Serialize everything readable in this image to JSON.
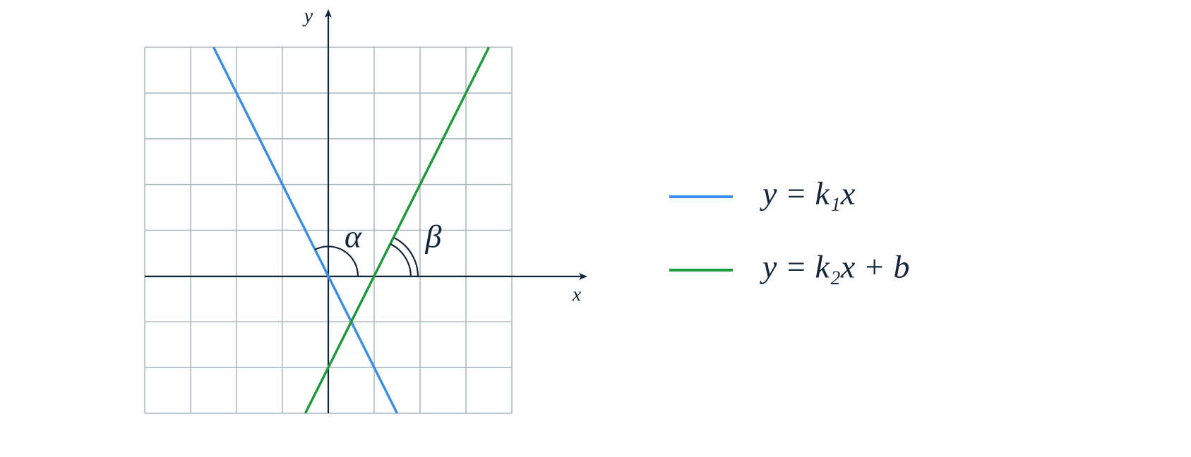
{
  "chart_data": {
    "type": "line",
    "x_label": "x",
    "y_label": "y",
    "xlim": [
      -4,
      4
    ],
    "ylim": [
      -3,
      5
    ],
    "grid": true,
    "series": [
      {
        "name": "y = k₁x",
        "color": "#3b8fe8",
        "x": [
          -2.5,
          1.5
        ],
        "values": [
          5,
          -3
        ]
      },
      {
        "name": "y = k₂x + b",
        "color": "#1f9a3f",
        "x": [
          -0.5,
          3.5
        ],
        "values": [
          -3,
          5
        ]
      }
    ],
    "annotations": [
      "α",
      "β"
    ]
  }
}
